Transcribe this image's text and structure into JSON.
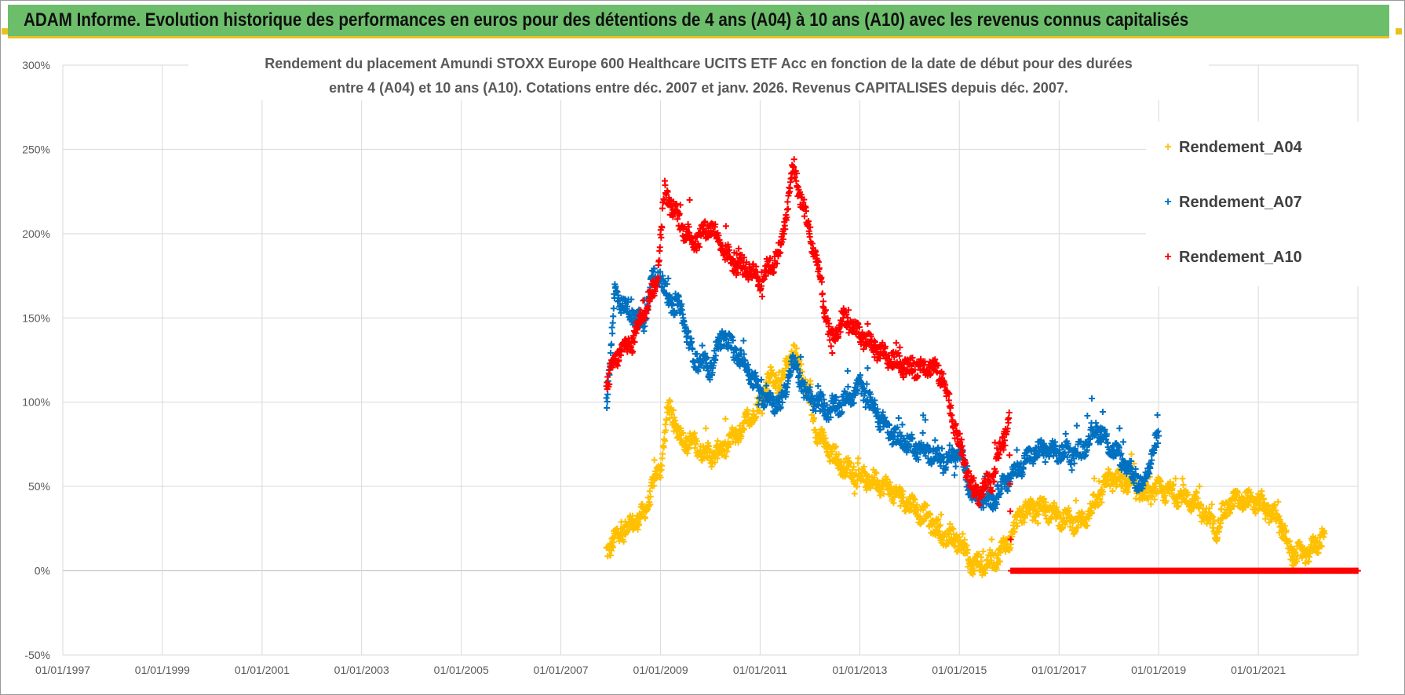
{
  "banner": {
    "title": "ADAM Informe. Evolution historique des performances en euros pour des détentions de 4 ans (A04) à 10 ans (A10) avec les revenus connus capitalisés"
  },
  "colors": {
    "banner": "#6dbe6b",
    "banner_accent": "#e8c21c",
    "A04": "#ffc000",
    "A07": "#0070c0",
    "A10": "#ff0000",
    "grid": "#d9d9d9",
    "text": "#595959"
  },
  "chart_data": {
    "type": "scatter",
    "title_line1": "Rendement du placement Amundi STOXX Europe 600 Healthcare UCITS ETF Acc en fonction de la date de début pour des durées",
    "title_line2": "entre 4 (A04) et 10 ans (A10). Cotations entre déc. 2007 et janv. 2026. Revenus CAPITALISES depuis déc. 2007.",
    "xlim": [
      "1997-01-01",
      "2023-01-01"
    ],
    "ylim": [
      -0.5,
      3.0
    ],
    "grid": true,
    "legend_position": "top-right",
    "x_ticks": [
      "01/01/1997",
      "01/01/1999",
      "01/01/2001",
      "01/01/2003",
      "01/01/2005",
      "01/01/2007",
      "01/01/2009",
      "01/01/2011",
      "01/01/2013",
      "01/01/2015",
      "01/01/2017",
      "01/01/2019",
      "01/01/2021"
    ],
    "y_ticks": [
      "300%",
      "250%",
      "200%",
      "150%",
      "100%",
      "50%",
      "0%",
      "-50%"
    ],
    "marker": "+",
    "series": [
      {
        "name": "Rendement_A04",
        "color": "#ffc000",
        "points": [
          [
            "2007-12-01",
            0.12
          ],
          [
            "2008-03-01",
            0.22
          ],
          [
            "2008-06-01",
            0.28
          ],
          [
            "2008-09-01",
            0.33
          ],
          [
            "2008-11-01",
            0.5
          ],
          [
            "2009-01-01",
            0.62
          ],
          [
            "2009-03-01",
            0.97
          ],
          [
            "2009-06-01",
            0.78
          ],
          [
            "2009-09-01",
            0.75
          ],
          [
            "2010-01-01",
            0.68
          ],
          [
            "2010-04-01",
            0.72
          ],
          [
            "2010-07-01",
            0.8
          ],
          [
            "2011-01-01",
            0.98
          ],
          [
            "2011-03-01",
            1.15
          ],
          [
            "2011-06-01",
            1.12
          ],
          [
            "2011-09-01",
            1.3
          ],
          [
            "2011-12-01",
            1.1
          ],
          [
            "2012-03-01",
            0.8
          ],
          [
            "2012-06-01",
            0.7
          ],
          [
            "2012-09-01",
            0.62
          ],
          [
            "2013-01-01",
            0.55
          ],
          [
            "2013-06-01",
            0.52
          ],
          [
            "2014-01-01",
            0.4
          ],
          [
            "2014-06-01",
            0.3
          ],
          [
            "2014-09-01",
            0.2
          ],
          [
            "2015-01-01",
            0.18
          ],
          [
            "2015-04-01",
            0.03
          ],
          [
            "2015-09-01",
            0.05
          ],
          [
            "2016-01-01",
            0.18
          ],
          [
            "2016-04-01",
            0.35
          ],
          [
            "2016-09-01",
            0.38
          ],
          [
            "2017-01-01",
            0.32
          ],
          [
            "2017-06-01",
            0.28
          ],
          [
            "2017-10-01",
            0.4
          ],
          [
            "2018-01-01",
            0.55
          ],
          [
            "2018-06-01",
            0.52
          ],
          [
            "2018-09-01",
            0.45
          ],
          [
            "2019-01-01",
            0.48
          ],
          [
            "2019-06-01",
            0.45
          ],
          [
            "2019-10-01",
            0.4
          ],
          [
            "2020-03-01",
            0.25
          ],
          [
            "2020-06-01",
            0.4
          ],
          [
            "2020-09-01",
            0.42
          ],
          [
            "2021-01-01",
            0.4
          ],
          [
            "2021-06-01",
            0.3
          ],
          [
            "2021-09-01",
            0.1
          ],
          [
            "2022-01-01",
            0.1
          ],
          [
            "2022-05-01",
            0.22
          ]
        ]
      },
      {
        "name": "Rendement_A07",
        "color": "#0070c0",
        "points": [
          [
            "2007-12-01",
            1.0
          ],
          [
            "2008-01-01",
            1.3
          ],
          [
            "2008-02-01",
            1.65
          ],
          [
            "2008-05-01",
            1.55
          ],
          [
            "2008-09-01",
            1.45
          ],
          [
            "2008-11-01",
            1.75
          ],
          [
            "2009-01-01",
            1.75
          ],
          [
            "2009-03-01",
            1.6
          ],
          [
            "2009-06-01",
            1.55
          ],
          [
            "2009-09-01",
            1.25
          ],
          [
            "2010-01-01",
            1.2
          ],
          [
            "2010-04-01",
            1.4
          ],
          [
            "2010-07-01",
            1.3
          ],
          [
            "2010-10-01",
            1.2
          ],
          [
            "2011-01-01",
            1.05
          ],
          [
            "2011-06-01",
            0.98
          ],
          [
            "2011-09-01",
            1.25
          ],
          [
            "2011-12-01",
            1.05
          ],
          [
            "2012-03-01",
            1.0
          ],
          [
            "2012-06-01",
            0.95
          ],
          [
            "2012-09-01",
            1.0
          ],
          [
            "2013-01-01",
            1.1
          ],
          [
            "2013-06-01",
            0.9
          ],
          [
            "2013-09-01",
            0.8
          ],
          [
            "2014-01-01",
            0.75
          ],
          [
            "2014-06-01",
            0.7
          ],
          [
            "2014-09-01",
            0.65
          ],
          [
            "2015-01-01",
            0.7
          ],
          [
            "2015-04-01",
            0.45
          ],
          [
            "2015-09-01",
            0.42
          ],
          [
            "2016-01-01",
            0.55
          ],
          [
            "2016-06-01",
            0.68
          ],
          [
            "2016-09-01",
            0.72
          ],
          [
            "2017-01-01",
            0.7
          ],
          [
            "2017-06-01",
            0.7
          ],
          [
            "2017-10-01",
            0.85
          ],
          [
            "2018-01-01",
            0.75
          ],
          [
            "2018-06-01",
            0.6
          ],
          [
            "2018-09-01",
            0.5
          ],
          [
            "2019-01-01",
            0.8
          ]
        ]
      },
      {
        "name": "Rendement_A10",
        "color": "#ff0000",
        "points": [
          [
            "2007-12-01",
            1.1
          ],
          [
            "2008-03-01",
            1.3
          ],
          [
            "2008-06-01",
            1.35
          ],
          [
            "2008-09-01",
            1.55
          ],
          [
            "2008-12-01",
            1.7
          ],
          [
            "2009-02-01",
            2.25
          ],
          [
            "2009-06-01",
            2.05
          ],
          [
            "2009-09-01",
            1.95
          ],
          [
            "2010-01-01",
            2.05
          ],
          [
            "2010-04-01",
            1.9
          ],
          [
            "2010-07-01",
            1.82
          ],
          [
            "2010-10-01",
            1.8
          ],
          [
            "2011-01-01",
            1.72
          ],
          [
            "2011-06-01",
            1.9
          ],
          [
            "2011-09-01",
            2.4
          ],
          [
            "2011-12-01",
            2.1
          ],
          [
            "2012-03-01",
            1.8
          ],
          [
            "2012-06-01",
            1.35
          ],
          [
            "2012-09-01",
            1.5
          ],
          [
            "2013-01-01",
            1.4
          ],
          [
            "2013-06-01",
            1.3
          ],
          [
            "2013-09-01",
            1.25
          ],
          [
            "2014-01-01",
            1.2
          ],
          [
            "2014-06-01",
            1.22
          ],
          [
            "2014-09-01",
            1.15
          ],
          [
            "2015-01-01",
            0.75
          ],
          [
            "2015-04-01",
            0.5
          ],
          [
            "2015-06-01",
            0.45
          ],
          [
            "2015-09-01",
            0.55
          ],
          [
            "2016-01-01",
            0.9
          ],
          [
            "2016-01-15",
            0.0
          ],
          [
            "2017-01-01",
            0.0
          ],
          [
            "2018-01-01",
            0.0
          ],
          [
            "2019-01-01",
            0.0
          ],
          [
            "2020-01-01",
            0.0
          ],
          [
            "2021-01-01",
            0.0
          ],
          [
            "2022-01-01",
            0.0
          ],
          [
            "2022-12-31",
            0.0
          ]
        ]
      }
    ]
  }
}
